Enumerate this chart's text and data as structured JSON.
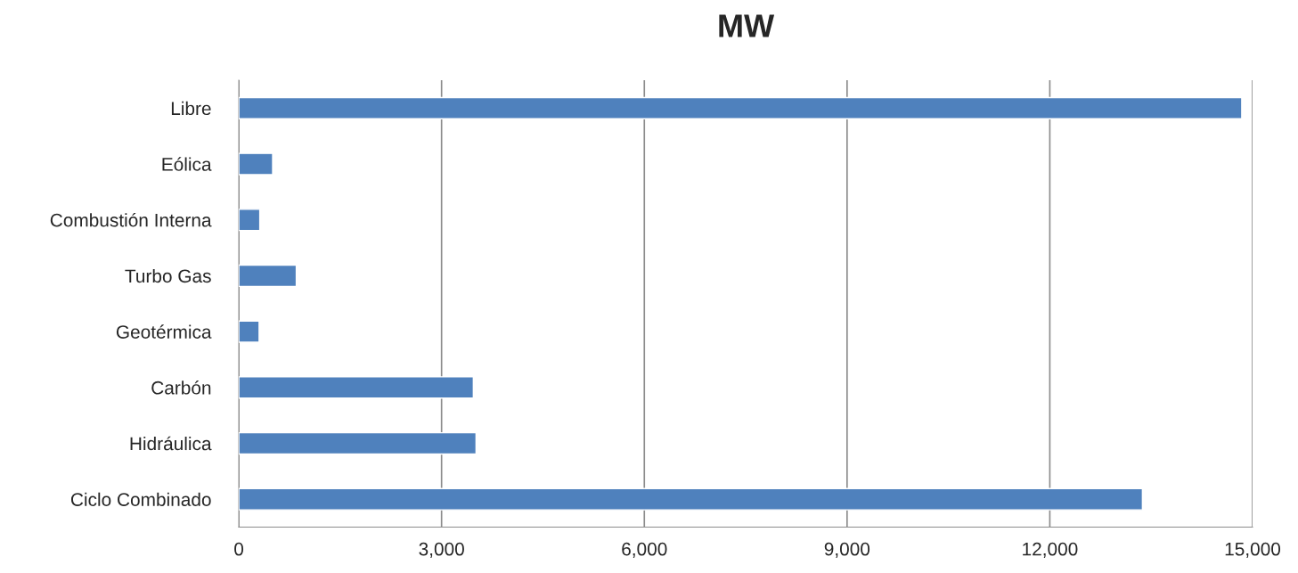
{
  "chart_data": {
    "type": "bar",
    "orientation": "horizontal",
    "title": "MW",
    "categories": [
      "Libre",
      "Eólica",
      "Combustión Interna",
      "Turbo Gas",
      "Geotérmica",
      "Carbón",
      "Hidráulica",
      "Ciclo Combinado"
    ],
    "values": [
      14840,
      500,
      310,
      850,
      300,
      3470,
      3510,
      13370
    ],
    "color": "#4f81bd",
    "xlim": [
      0,
      15000
    ],
    "xticks": [
      {
        "value": 0,
        "label": "0"
      },
      {
        "value": 3000,
        "label": "3,000"
      },
      {
        "value": 6000,
        "label": "6,000"
      },
      {
        "value": 9000,
        "label": "9,000"
      },
      {
        "value": 12000,
        "label": "12,000"
      },
      {
        "value": 15000,
        "label": "15,000"
      }
    ],
    "grid": "x"
  }
}
